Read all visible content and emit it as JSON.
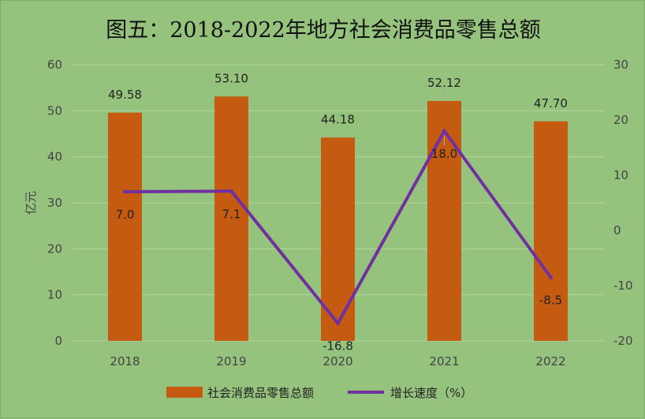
{
  "chart_data": {
    "type": "bar",
    "title": "图五：2018-2022年地方社会消费品零售总额",
    "categories": [
      "2018",
      "2019",
      "2020",
      "2021",
      "2022"
    ],
    "ylabel": "亿元",
    "ylim": [
      0,
      60
    ],
    "y_ticks": [
      "0",
      "10",
      "20",
      "30",
      "40",
      "50",
      "60"
    ],
    "y2lim": [
      -20,
      30
    ],
    "y2_ticks": [
      "-20",
      "-10",
      "0",
      "10",
      "20",
      "30"
    ],
    "grid": true,
    "legend_position": "bottom",
    "series": [
      {
        "name": "社会消费品零售总额",
        "type": "bar",
        "axis": "left",
        "color": "#c55a11",
        "values": [
          49.58,
          53.1,
          44.18,
          52.12,
          47.7
        ],
        "labels": [
          "49.58",
          "53.10",
          "44.18",
          "52.12",
          "47.70"
        ]
      },
      {
        "name": "增长速度（%）",
        "type": "line",
        "axis": "right",
        "color": "#7030a0",
        "values": [
          7.0,
          7.1,
          -16.8,
          18.0,
          -8.5
        ],
        "labels": [
          "7.0",
          "7.1",
          "-16.8",
          "18.0",
          "-8.5"
        ]
      }
    ]
  }
}
